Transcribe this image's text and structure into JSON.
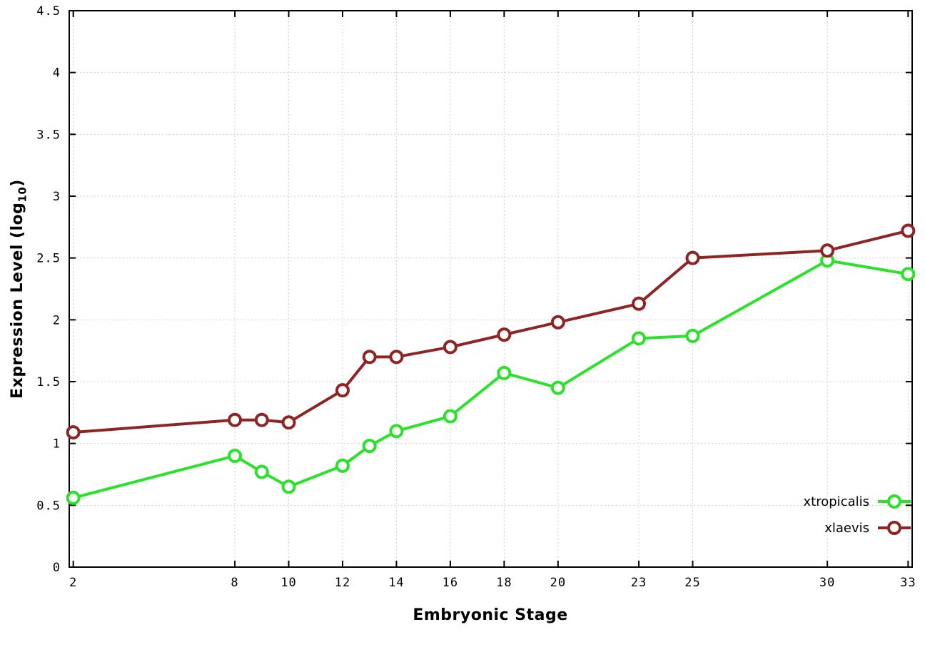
{
  "chart_data": {
    "type": "line",
    "title": "",
    "xlabel": "Embryonic Stage",
    "ylabel": "Expression Level (log10)",
    "ylabel_parts": {
      "main": "Expression Level (log",
      "sub": "10",
      "end": ")"
    },
    "x": [
      2,
      8,
      9,
      10,
      12,
      13,
      14,
      16,
      18,
      20,
      23,
      25,
      30,
      33
    ],
    "series": [
      {
        "name": "xtropicalis",
        "color": "#2be22b",
        "values": [
          0.56,
          0.9,
          0.77,
          0.65,
          0.82,
          0.98,
          1.1,
          1.22,
          1.57,
          1.45,
          1.85,
          1.87,
          2.48,
          2.37
        ]
      },
      {
        "name": "xlaevis",
        "color": "#8e2424",
        "values": [
          1.09,
          1.19,
          1.19,
          1.17,
          1.43,
          1.7,
          1.7,
          1.78,
          1.88,
          1.98,
          2.13,
          2.5,
          2.56,
          2.72
        ]
      }
    ],
    "xticks": [
      2,
      8,
      10,
      12,
      14,
      16,
      18,
      20,
      23,
      25,
      30,
      33
    ],
    "yticks": [
      0,
      0.5,
      1,
      1.5,
      2,
      2.5,
      3,
      3.5,
      4,
      4.5
    ],
    "ytick_labels": [
      "0",
      "0.5",
      "1",
      "1.5",
      "2",
      "2.5",
      "3",
      "3.5",
      "4",
      "4.5"
    ],
    "xlim": [
      2,
      33
    ],
    "ylim": [
      0,
      4.5
    ],
    "grid": true,
    "legend_position": "bottom-right",
    "marker": "open-circle",
    "background_color": "#ffffff",
    "grid_color": "#cfcfcf"
  }
}
